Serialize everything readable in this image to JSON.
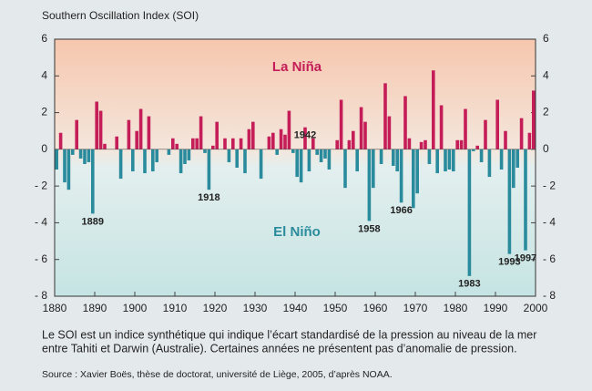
{
  "chart_data": {
    "type": "bar",
    "title": "Southern Oscillation Index (SOI)",
    "x": [
      1880,
      1881,
      1882,
      1883,
      1884,
      1885,
      1886,
      1887,
      1888,
      1889,
      1890,
      1891,
      1892,
      1893,
      1894,
      1895,
      1896,
      1897,
      1898,
      1899,
      1900,
      1901,
      1902,
      1903,
      1904,
      1905,
      1906,
      1907,
      1908,
      1909,
      1910,
      1911,
      1912,
      1913,
      1914,
      1915,
      1916,
      1917,
      1918,
      1919,
      1920,
      1921,
      1922,
      1923,
      1924,
      1925,
      1926,
      1927,
      1928,
      1929,
      1930,
      1931,
      1932,
      1933,
      1934,
      1935,
      1936,
      1937,
      1938,
      1939,
      1940,
      1941,
      1942,
      1943,
      1944,
      1945,
      1946,
      1947,
      1948,
      1949,
      1950,
      1951,
      1952,
      1953,
      1954,
      1955,
      1956,
      1957,
      1958,
      1959,
      1960,
      1961,
      1962,
      1963,
      1964,
      1965,
      1966,
      1967,
      1968,
      1969,
      1970,
      1971,
      1972,
      1973,
      1974,
      1975,
      1976,
      1977,
      1978,
      1979,
      1980,
      1981,
      1982,
      1983,
      1984,
      1985,
      1986,
      1987,
      1988,
      1989,
      1990,
      1991,
      1992,
      1993,
      1994,
      1995,
      1996,
      1997,
      1998,
      1999
    ],
    "values": [
      -1.1,
      0.9,
      -1.8,
      -2.2,
      -0.3,
      1.6,
      -0.5,
      -0.8,
      -0.7,
      -3.5,
      2.6,
      2.1,
      0.3,
      0,
      0,
      0.7,
      -1.6,
      0,
      1.6,
      -1.2,
      1.0,
      2.2,
      -1.3,
      1.8,
      -1.2,
      -0.7,
      0,
      0,
      -0.3,
      0.6,
      0.3,
      -1.3,
      -0.8,
      -0.6,
      0.6,
      0.6,
      1.8,
      -0.2,
      -2.2,
      0.2,
      1.5,
      0,
      0.6,
      -0.7,
      0.6,
      -1.0,
      0.6,
      -1.3,
      1.1,
      1.5,
      0,
      -1.6,
      0,
      0.7,
      0.9,
      -0.3,
      1.1,
      0.8,
      2.1,
      -0.2,
      -1.5,
      -1.8,
      1.2,
      -1.2,
      0.6,
      -0.3,
      -0.7,
      -0.5,
      -1.1,
      0,
      0.5,
      2.7,
      -2.1,
      0.5,
      1.0,
      -1.2,
      2.3,
      1.5,
      -3.9,
      -2.1,
      0,
      -0.8,
      3.6,
      1.8,
      -0.9,
      -1.2,
      -2.9,
      2.9,
      0.6,
      -3.2,
      -2.4,
      0.4,
      0.5,
      -0.8,
      4.3,
      -1.3,
      2.4,
      -1.2,
      -1.1,
      -1.2,
      0.5,
      0.5,
      2.2,
      -6.9,
      -0.1,
      0.2,
      -0.7,
      1.6,
      -1.5,
      0,
      2.7,
      -1.1,
      1.0,
      -5.7,
      -2.1,
      -1.0,
      1.7,
      -5.5,
      0.9,
      3.2
    ],
    "colors": {
      "positive": "#c41d58",
      "negative": "#2a8b9d"
    },
    "xlim": [
      1880,
      2000
    ],
    "xticks": [
      1880,
      1890,
      1900,
      1910,
      1920,
      1930,
      1940,
      1950,
      1960,
      1970,
      1980,
      1990,
      2000
    ],
    "ylim": [
      -8,
      6
    ],
    "yticks": [
      {
        "value": -8,
        "label": "- 8"
      },
      {
        "value": -6,
        "label": "- 6"
      },
      {
        "value": -4,
        "label": "- 4"
      },
      {
        "value": -2,
        "label": "- 2"
      },
      0,
      2,
      4,
      6
    ],
    "la_nina_label": "La Niña",
    "el_nino_label": "El Niño",
    "annotations": [
      {
        "text": "1889",
        "x": 1889
      },
      {
        "text": "1918",
        "x": 1918
      },
      {
        "text": "1942",
        "x": 1942
      },
      {
        "text": "1958",
        "x": 1958
      },
      {
        "text": "1966",
        "x": 1966
      },
      {
        "text": "1983",
        "x": 1983
      },
      {
        "text": "1993",
        "x": 1993
      },
      {
        "text": "1997",
        "x": 1997
      }
    ],
    "caption": [
      "Le SOI est un indice synthétique qui indique l’écart standardisé de la pression au niveau de la mer",
      "entre Tahiti et Darwin (Australie). Certaines années ne présentent pas d’anomalie de pression."
    ],
    "source": "Source : Xavier Boës, thèse de doctorat, université de Liège, 2005, d’après NOAA."
  }
}
